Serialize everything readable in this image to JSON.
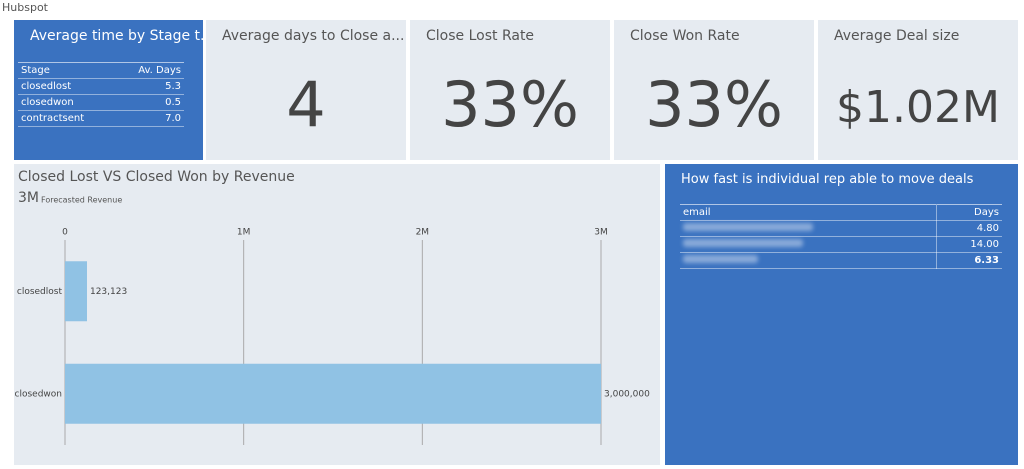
{
  "header": {
    "title": "Hubspot"
  },
  "tiles": [
    {
      "title": "Average time by Stage t...",
      "table": {
        "columns": [
          "Stage",
          "Av. Days"
        ],
        "rows": [
          [
            "closedlost",
            "5.3"
          ],
          [
            "closedwon",
            "0.5"
          ],
          [
            "contractsent",
            "7.0"
          ]
        ]
      }
    },
    {
      "title": "Average days to Close a...",
      "value": "4"
    },
    {
      "title": "Close Lost Rate",
      "value": "33%"
    },
    {
      "title": "Close Won Rate",
      "value": "33%"
    },
    {
      "title": "Average Deal size",
      "value": "$1.02M"
    }
  ],
  "chart_data": {
    "type": "bar",
    "orientation": "horizontal",
    "title": "Closed Lost VS Closed Won by Revenue",
    "summary": "3M",
    "subtitle": "Forecasted Revenue",
    "categories": [
      "closedlost",
      "closedwon"
    ],
    "values": [
      123123,
      3000000
    ],
    "value_labels": [
      "123,123",
      "3,000,000"
    ],
    "color": "#90c2e4",
    "xlim": [
      0,
      3000000
    ],
    "xticks": [
      0,
      {
        "value": 1000000,
        "label": "1M"
      },
      {
        "value": 2000000,
        "label": "2M"
      },
      {
        "value": 3000000,
        "label": "3M"
      }
    ],
    "grid": true
  },
  "rep_table": {
    "title": "How fast is individual rep able to move deals",
    "columns": [
      "email",
      "Days"
    ],
    "days": [
      "4.80",
      "14.00"
    ],
    "total": "6.33"
  }
}
